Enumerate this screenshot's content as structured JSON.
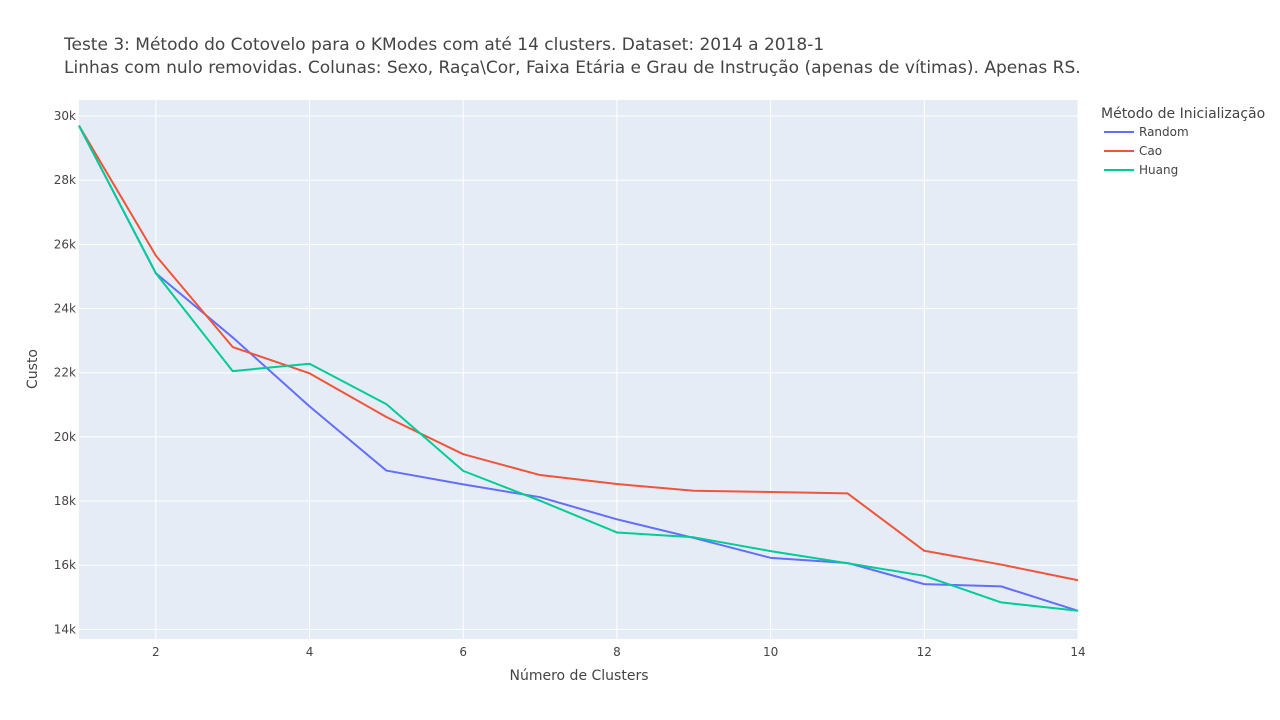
{
  "chart_data": {
    "type": "line",
    "title_line1": "Teste 3: Método do Cotovelo para o KModes com até 14 clusters. Dataset: 2014 a 2018-1",
    "title_line2": "Linhas com nulo removidas. Colunas: Sexo, Raça\\Cor, Faixa Etária e Grau de Instrução (apenas de vítimas). Apenas RS.",
    "xlabel": "Número de Clusters",
    "ylabel": "Custo",
    "xlim": [
      1,
      14
    ],
    "ylim": [
      13700,
      30500
    ],
    "x_ticks": [
      2,
      4,
      6,
      8,
      10,
      12,
      14
    ],
    "y_ticks": [
      14000,
      16000,
      18000,
      20000,
      22000,
      24000,
      26000,
      28000,
      30000
    ],
    "y_tick_labels": [
      "14k",
      "16k",
      "18k",
      "20k",
      "22k",
      "24k",
      "26k",
      "28k",
      "30k"
    ],
    "plot_bgcolor": "#E5ECF6",
    "grid": true,
    "legend": {
      "title": "Método de Inicialização",
      "position": "top-right"
    },
    "x": [
      1,
      2,
      3,
      4,
      5,
      6,
      7,
      8,
      9,
      10,
      11,
      12,
      13,
      14
    ],
    "series": [
      {
        "name": "Random",
        "color": "#636EFA",
        "values": [
          29700,
          25100,
          23100,
          20950,
          18950,
          18520,
          18120,
          17430,
          16850,
          16230,
          16070,
          15410,
          15340,
          14580
        ]
      },
      {
        "name": "Cao",
        "color": "#EF553B",
        "values": [
          29700,
          25650,
          22800,
          21980,
          20620,
          19460,
          18810,
          18530,
          18320,
          18280,
          18240,
          16450,
          16020,
          15530
        ]
      },
      {
        "name": "Huang",
        "color": "#00CC96",
        "values": [
          29700,
          25100,
          22050,
          22280,
          21020,
          18940,
          18010,
          17020,
          16870,
          16440,
          16060,
          15670,
          14840,
          14580
        ]
      }
    ]
  }
}
